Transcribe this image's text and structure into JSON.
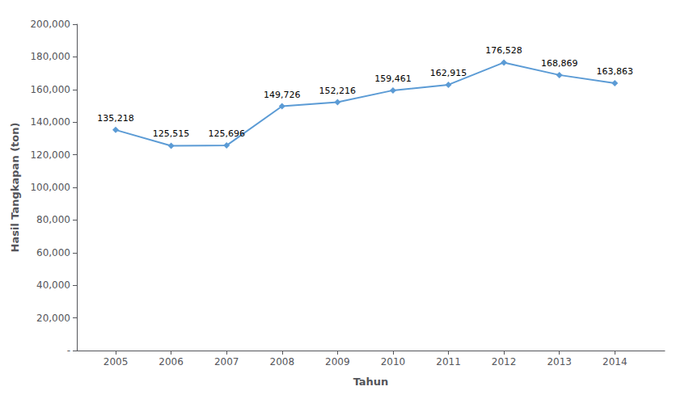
{
  "chart_data": {
    "type": "line",
    "x": [
      2005,
      2006,
      2007,
      2008,
      2009,
      2010,
      2011,
      2012,
      2013,
      2014
    ],
    "values": [
      135218,
      125515,
      125696,
      149726,
      152216,
      159461,
      162915,
      176528,
      168869,
      163863
    ],
    "value_labels": [
      "135,218",
      "125,515",
      "125,696",
      "149,726",
      "152,216",
      "159,461",
      "162,915",
      "176,528",
      "168,869",
      "163,863"
    ],
    "data_labels": true,
    "color": "#5b9bd5",
    "marker": "diamond",
    "xlabel": "Tahun",
    "ylabel": "Hasil Tangkapan (ton)",
    "xlim": [
      2004.3,
      2014.9
    ],
    "xticks": [
      2005,
      2006,
      2007,
      2008,
      2009,
      2010,
      2011,
      2012,
      2013,
      2014
    ],
    "ylim": [
      0,
      200000
    ],
    "yticks": [
      {
        "value": 0,
        "label": "-"
      },
      {
        "value": 20000,
        "label": "20,000"
      },
      {
        "value": 40000,
        "label": "40,000"
      },
      {
        "value": 60000,
        "label": "60,000"
      },
      {
        "value": 80000,
        "label": "80,000"
      },
      {
        "value": 100000,
        "label": "100,000"
      },
      {
        "value": 120000,
        "label": "120,000"
      },
      {
        "value": 140000,
        "label": "140,000"
      },
      {
        "value": 160000,
        "label": "160,000"
      },
      {
        "value": 180000,
        "label": "180,000"
      },
      {
        "value": 200000,
        "label": "200,000"
      }
    ],
    "grid": false
  }
}
